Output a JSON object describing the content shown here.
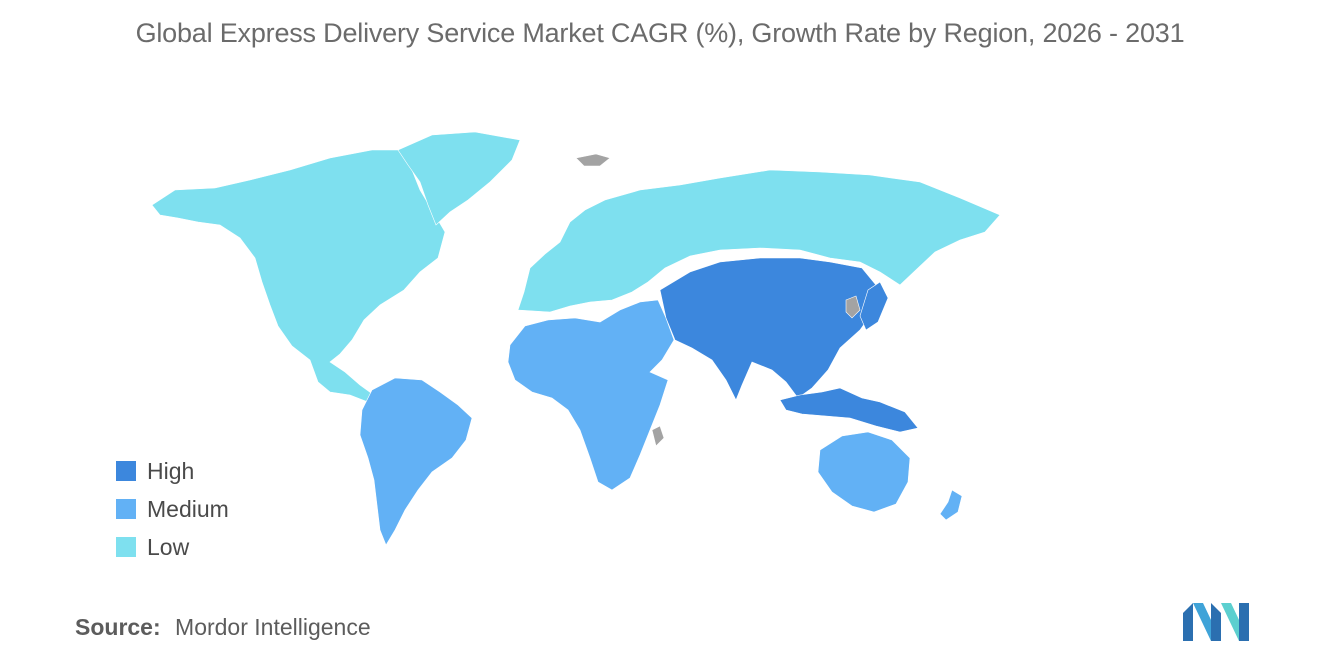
{
  "title": "Global Express Delivery Service Market CAGR (%), Growth Rate by Region, 2026 - 2031",
  "legend": [
    {
      "label": "High",
      "color": "#3c87dd"
    },
    {
      "label": "Medium",
      "color": "#62b1f5"
    },
    {
      "label": "Low",
      "color": "#7ee0ef"
    }
  ],
  "colors": {
    "high": "#3c87dd",
    "medium": "#62b1f5",
    "low": "#7ee0ef",
    "no_data": "#a3a3a3"
  },
  "regions": [
    {
      "name": "North America",
      "level": "Low"
    },
    {
      "name": "Europe",
      "level": "Low"
    },
    {
      "name": "Russia",
      "level": "Low"
    },
    {
      "name": "Asia-Pacific",
      "level": "High"
    },
    {
      "name": "South America",
      "level": "Medium"
    },
    {
      "name": "Middle East and Africa",
      "level": "Medium"
    },
    {
      "name": "Australia and New Zealand",
      "level": "Medium"
    }
  ],
  "source": {
    "label": "Source:",
    "text": "Mordor Intelligence"
  }
}
